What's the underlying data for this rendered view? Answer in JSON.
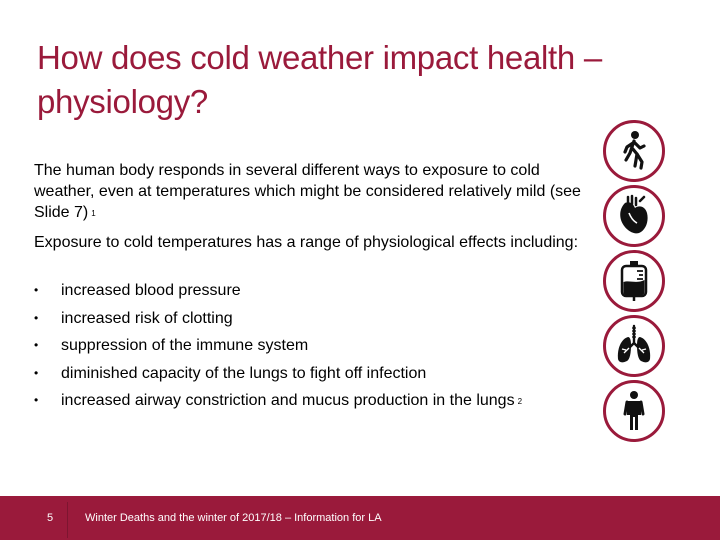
{
  "slide": {
    "title": "How does cold weather impact health – physiology?",
    "intro": "The human body responds in several different ways to exposure to cold weather, even at temperatures which might be considered relatively mild (see Slide 7)",
    "intro_ref": "1",
    "exposure": "Exposure to cold temperatures has a range of physiological effects including:",
    "bullet_glyph": "•",
    "effects": [
      "increased blood pressure",
      "increased risk of clotting",
      "suppression of the immune system",
      "diminished capacity of the lungs to fight off infection",
      "increased airway constriction and mucus production in the lungs"
    ],
    "last_effect_ref": "2",
    "icons": [
      "walking-person-icon",
      "heart-icon",
      "blood-bag-icon",
      "lungs-icon",
      "standing-person-icon"
    ]
  },
  "footer": {
    "page_number": "5",
    "text": "Winter Deaths and the winter of 2017/18 – Information for LA"
  },
  "colors": {
    "accent": "#9a1a3b",
    "text": "#000000",
    "background": "#ffffff"
  }
}
